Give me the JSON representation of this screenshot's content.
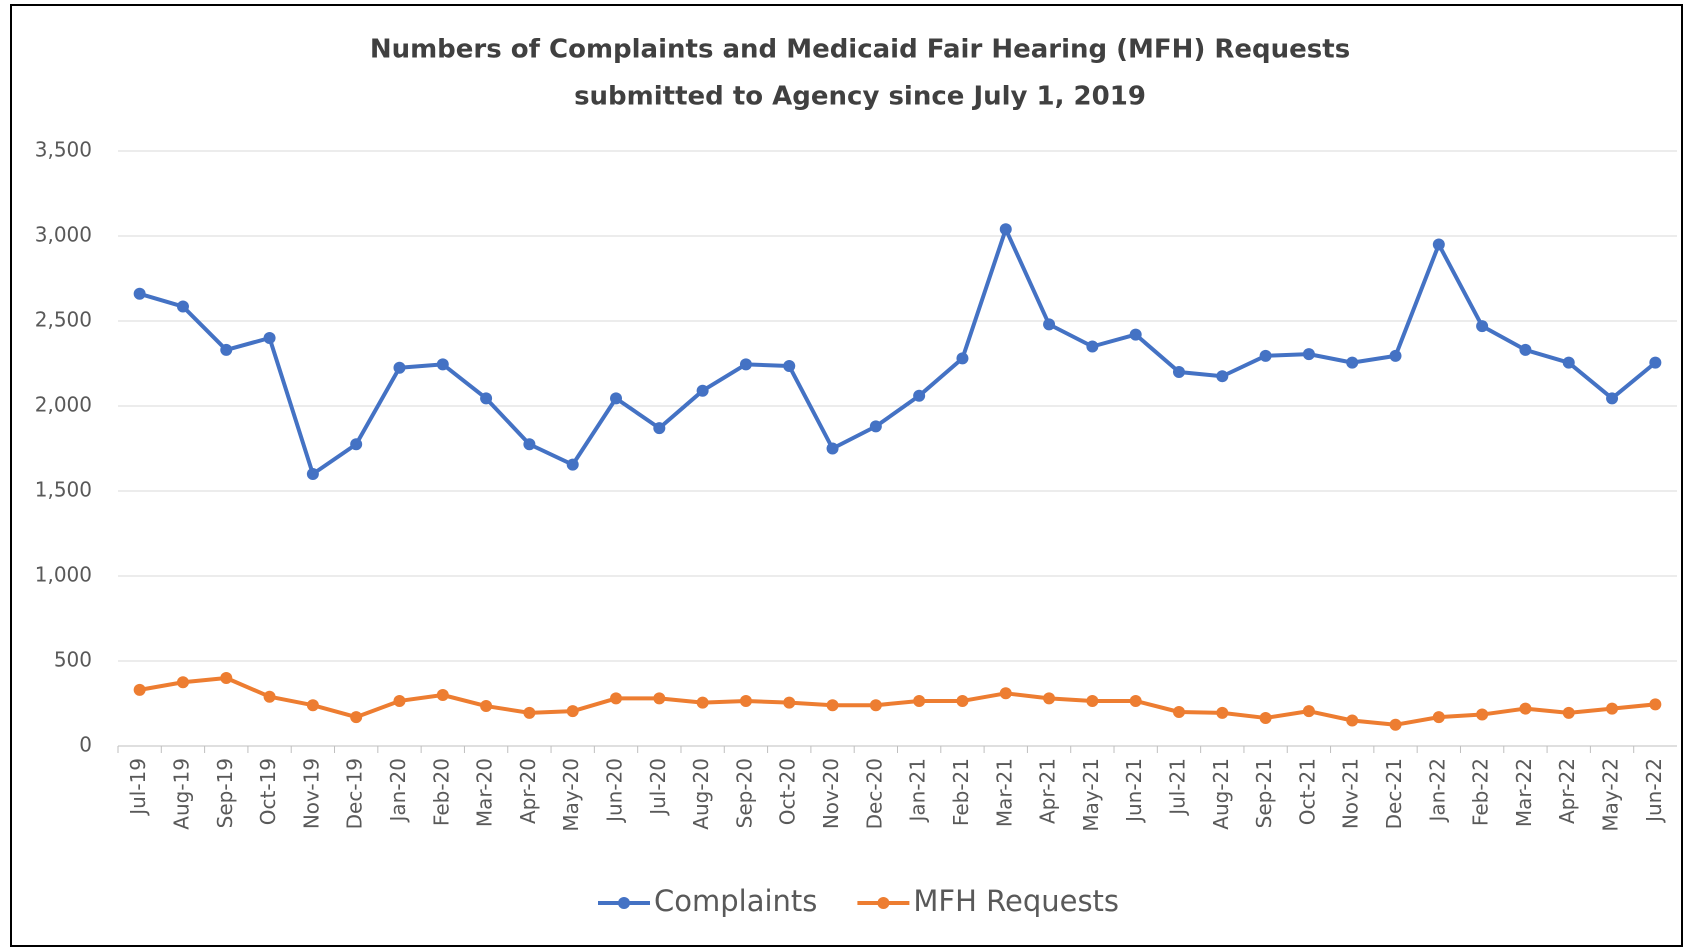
{
  "chart_data": {
    "type": "line",
    "title": [
      "Numbers of Complaints and Medicaid Fair Hearing (MFH) Requests",
      "submitted to Agency since July 1, 2019"
    ],
    "categories": [
      "Jul-19",
      "Aug-19",
      "Sep-19",
      "Oct-19",
      "Nov-19",
      "Dec-19",
      "Jan-20",
      "Feb-20",
      "Mar-20",
      "Apr-20",
      "May-20",
      "Jun-20",
      "Jul-20",
      "Aug-20",
      "Sep-20",
      "Oct-20",
      "Nov-20",
      "Dec-20",
      "Jan-21",
      "Feb-21",
      "Mar-21",
      "Apr-21",
      "May-21",
      "Jun-21",
      "Jul-21",
      "Aug-21",
      "Sep-21",
      "Oct-21",
      "Nov-21",
      "Dec-21",
      "Jan-22",
      "Feb-22",
      "Mar-22",
      "Apr-22",
      "May-22",
      "Jun-22"
    ],
    "series": [
      {
        "name": "Complaints",
        "color": "#4472c4",
        "values": [
          2660,
          2585,
          2330,
          2400,
          1600,
          1775,
          2225,
          2245,
          2045,
          1775,
          1655,
          2045,
          1870,
          2090,
          2245,
          2235,
          1750,
          1880,
          2060,
          2280,
          3040,
          2480,
          2350,
          2420,
          2200,
          2175,
          2295,
          2305,
          2255,
          2295,
          2950,
          2470,
          2330,
          2255,
          2045,
          2255
        ]
      },
      {
        "name": "MFH Requests",
        "color": "#ed7d31",
        "values": [
          330,
          375,
          400,
          290,
          240,
          170,
          265,
          300,
          235,
          195,
          205,
          280,
          280,
          255,
          265,
          255,
          240,
          240,
          265,
          265,
          310,
          280,
          265,
          265,
          200,
          195,
          165,
          205,
          150,
          125,
          170,
          185,
          220,
          195,
          220,
          245
        ]
      }
    ],
    "ylim": [
      0,
      3500
    ],
    "yticks": [
      0,
      500,
      {
        "value": 1000,
        "label": "1,000"
      },
      {
        "value": 1500,
        "label": "1,500"
      },
      {
        "value": 2000,
        "label": "2,000"
      },
      {
        "value": 2500,
        "label": "2,500"
      },
      {
        "value": 3000,
        "label": "3,000"
      },
      {
        "value": 3500,
        "label": "3,500"
      }
    ],
    "grid": true,
    "legend": "bottom"
  }
}
